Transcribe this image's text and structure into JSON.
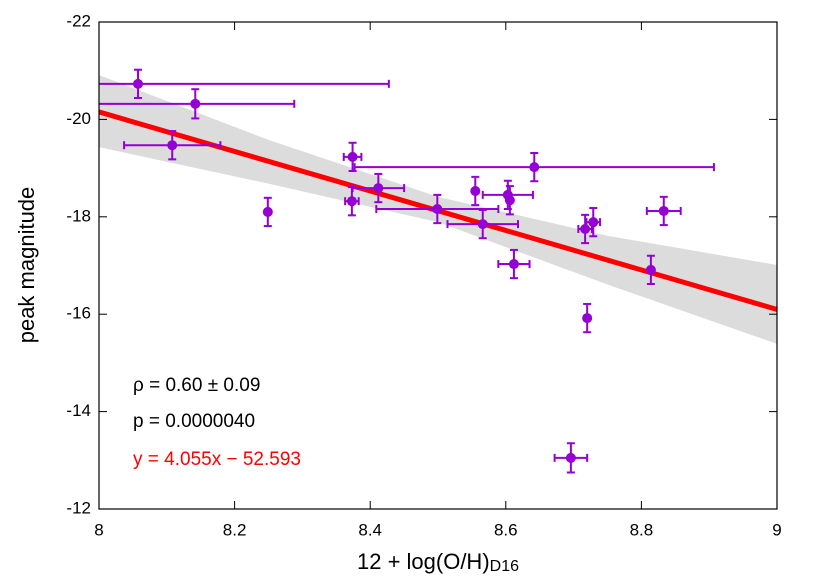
{
  "chart_data": {
    "type": "scatter",
    "xlabel": "12 + log(O/H)",
    "xlabel_sub": "D16",
    "ylabel": "peak magnitude",
    "xlim": [
      8,
      9
    ],
    "xticks": [
      8,
      8.2,
      8.4,
      8.6,
      8.8,
      9
    ],
    "ylim": [
      -12,
      -22
    ],
    "yticks": [
      -22,
      -20,
      -18,
      -16,
      -14,
      -12
    ],
    "series": [
      {
        "color": "#9400d3",
        "x": [
          8.0575,
          8.142,
          8.108,
          8.249,
          8.374,
          8.373,
          8.412,
          8.642,
          8.499,
          8.555,
          8.603,
          8.606,
          8.566,
          8.612,
          8.717,
          8.729,
          8.833,
          8.814,
          8.72,
          8.696
        ],
        "values": [
          -20.73,
          -20.32,
          -19.47,
          -18.1,
          -19.23,
          -18.32,
          -18.59,
          -19.02,
          -18.16,
          -18.53,
          -18.45,
          -18.34,
          -17.85,
          -17.03,
          -17.75,
          -17.89,
          -18.12,
          -16.91,
          -15.92,
          -13.05
        ],
        "xerr": [
          0.37,
          0.146,
          0.071,
          0,
          0.013,
          0.01,
          0.038,
          0.265,
          0.09,
          0,
          0.037,
          0,
          0.052,
          0.023,
          0.01,
          0.01,
          0.025,
          0,
          0,
          0.024
        ],
        "yerr": [
          0.29,
          0.3,
          0.29,
          0.29,
          0.29,
          0.29,
          0.29,
          0.29,
          0.29,
          0.29,
          0.29,
          0.29,
          0.29,
          0.29,
          0.29,
          0.29,
          0.29,
          0.29,
          0.29,
          0.3
        ]
      }
    ],
    "fit": {
      "slope": 4.055,
      "intercept": -52.593,
      "color": "#ff0000",
      "label": "y = 4.055x − 52.593"
    },
    "band": {
      "color": "#dcdcdc",
      "x": [
        8,
        8.25,
        8.5,
        8.75,
        9
      ],
      "lower": [
        -20.91,
        -19.58,
        -18.41,
        -17.61,
        -17.01
      ],
      "upper": [
        -19.43,
        -18.68,
        -17.89,
        -16.61,
        -15.39
      ]
    },
    "annotations": [
      "ρ = 0.60 ± 0.09",
      "p = 0.0000040"
    ]
  }
}
